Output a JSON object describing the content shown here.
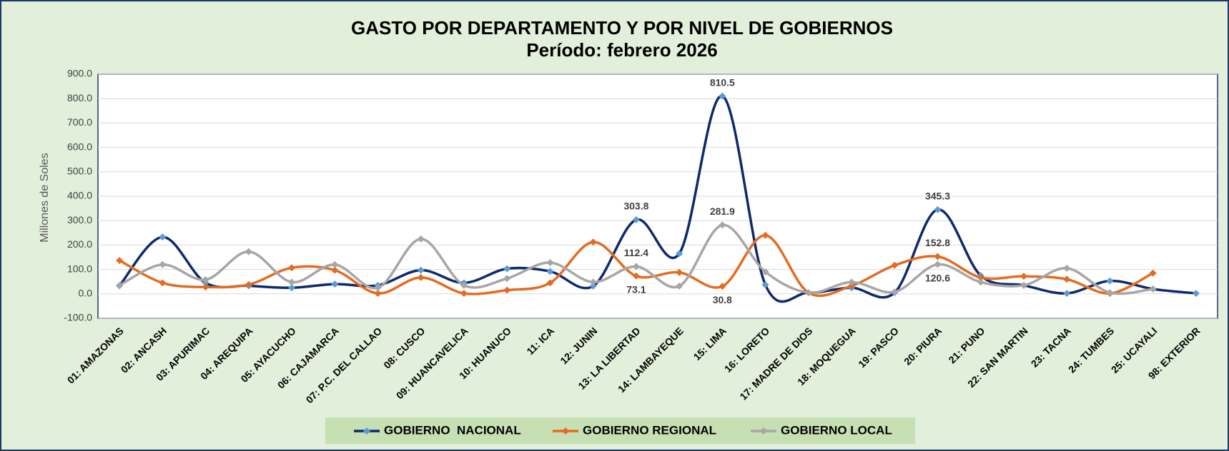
{
  "chart_data": {
    "type": "line",
    "title": "GASTO POR DEPARTAMENTO Y POR NIVEL DE GOBIERNOS",
    "subtitle": "Período:  febrero 2026",
    "y_label": "Millones de Soles",
    "categories": [
      "01: AMAZONAS",
      "02: ANCASH",
      "03: APURIMAC",
      "04: AREQUIPA",
      "05: AYACUCHO",
      "06: CAJAMARCA",
      "07: P.C. DEL CALLAO",
      "08: CUSCO",
      "09: HUANCAVELICA",
      "10: HUANUCO",
      "11: ICA",
      "12: JUNIN",
      "13: LA LIBERTAD",
      "14: LAMBAYEQUE",
      "15: LIMA",
      "16: LORETO",
      "17: MADRE DE DIOS",
      "18: MOQUEGUA",
      "19: PASCO",
      "20: PIURA",
      "21: PUNO",
      "22: SAN MARTIN",
      "23: TACNA",
      "24: TUMBES",
      "25: UCAYALI",
      "98: EXTERIOR"
    ],
    "series": [
      {
        "name": "GOBIERNO  NACIONAL",
        "color": "#0e2a6b",
        "marker_color": "#5b9bd5",
        "values": [
          33,
          233,
          45,
          33,
          25,
          40,
          35,
          97,
          45,
          103,
          92,
          32,
          303.8,
          165,
          810.5,
          37,
          5,
          25,
          5,
          345.3,
          75,
          35,
          2,
          53,
          20,
          2
        ],
        "value_labels": [
          null,
          null,
          null,
          null,
          null,
          null,
          null,
          null,
          null,
          null,
          null,
          null,
          "303.8",
          null,
          "810.5",
          null,
          null,
          null,
          null,
          "345.3",
          null,
          null,
          null,
          null,
          null,
          null
        ]
      },
      {
        "name": "GOBIERNO REGIONAL",
        "color": "#e36c21",
        "marker_color": "#e36c21",
        "values": [
          137,
          45,
          28,
          38,
          107,
          97,
          2,
          67,
          2,
          15,
          45,
          212,
          73.1,
          88,
          30.8,
          240,
          5,
          33,
          117,
          152.8,
          67,
          72,
          60,
          2,
          85,
          null
        ],
        "value_labels": [
          null,
          null,
          null,
          null,
          null,
          null,
          null,
          null,
          null,
          null,
          null,
          null,
          "73.1",
          null,
          "30.8",
          null,
          null,
          null,
          null,
          "152.8",
          null,
          null,
          null,
          null,
          null,
          null
        ]
      },
      {
        "name": "GOBIERNO LOCAL",
        "color": "#a6a6a6",
        "marker_color": "#a6a6a6",
        "values": [
          35,
          120,
          58,
          173,
          48,
          120,
          25,
          225,
          35,
          63,
          128,
          48,
          112.4,
          32,
          281.9,
          90,
          5,
          48,
          8,
          120.6,
          48,
          35,
          105,
          5,
          20,
          null
        ],
        "value_labels": [
          null,
          null,
          null,
          null,
          null,
          null,
          null,
          null,
          null,
          null,
          null,
          null,
          "112.4",
          null,
          "281.9",
          null,
          null,
          null,
          null,
          "120.6",
          null,
          null,
          null,
          null,
          null,
          null
        ]
      }
    ],
    "ylim": [
      -100,
      900
    ],
    "yticks": [
      {
        "value": -100,
        "label": "-100.0"
      },
      {
        "value": 0,
        "label": "0.0"
      },
      {
        "value": 100,
        "label": "100.0"
      },
      {
        "value": 200,
        "label": "200.0"
      },
      {
        "value": 300,
        "label": "300.0"
      },
      {
        "value": 400,
        "label": "400.0"
      },
      {
        "value": 500,
        "label": "500.0"
      },
      {
        "value": 600,
        "label": "600.0"
      },
      {
        "value": 700,
        "label": "700.0"
      },
      {
        "value": 800,
        "label": "800.0"
      },
      {
        "value": 900,
        "label": "900.0"
      }
    ],
    "grid": true,
    "smooth": true,
    "legend": "bottom"
  }
}
